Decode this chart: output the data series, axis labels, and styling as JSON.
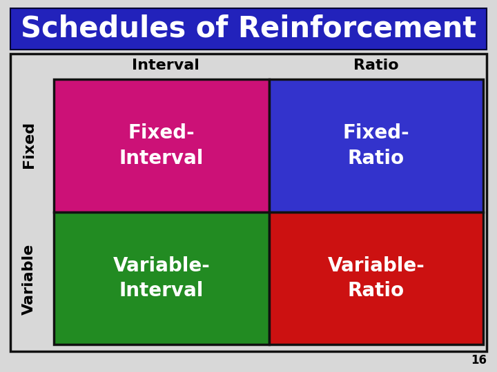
{
  "title": "Schedules of Reinforcement",
  "title_bg_color": "#2222BB",
  "title_text_color": "#FFFFFF",
  "background_color": "#D8D8D8",
  "outer_border_color": "#111111",
  "col_headers": [
    "Interval",
    "Ratio"
  ],
  "row_headers": [
    "Fixed",
    "Variable"
  ],
  "cells": [
    {
      "text": "Fixed-\nInterval",
      "color": "#CC1177"
    },
    {
      "text": "Fixed-\nRatio",
      "color": "#3333CC"
    },
    {
      "text": "Variable-\nInterval",
      "color": "#228B22"
    },
    {
      "text": "Variable-\nRatio",
      "color": "#CC1111"
    }
  ],
  "cell_text_color": "#FFFFFF",
  "page_number": "16",
  "col_header_fontsize": 16,
  "row_header_fontsize": 16,
  "cell_fontsize": 20,
  "title_fontsize": 30
}
